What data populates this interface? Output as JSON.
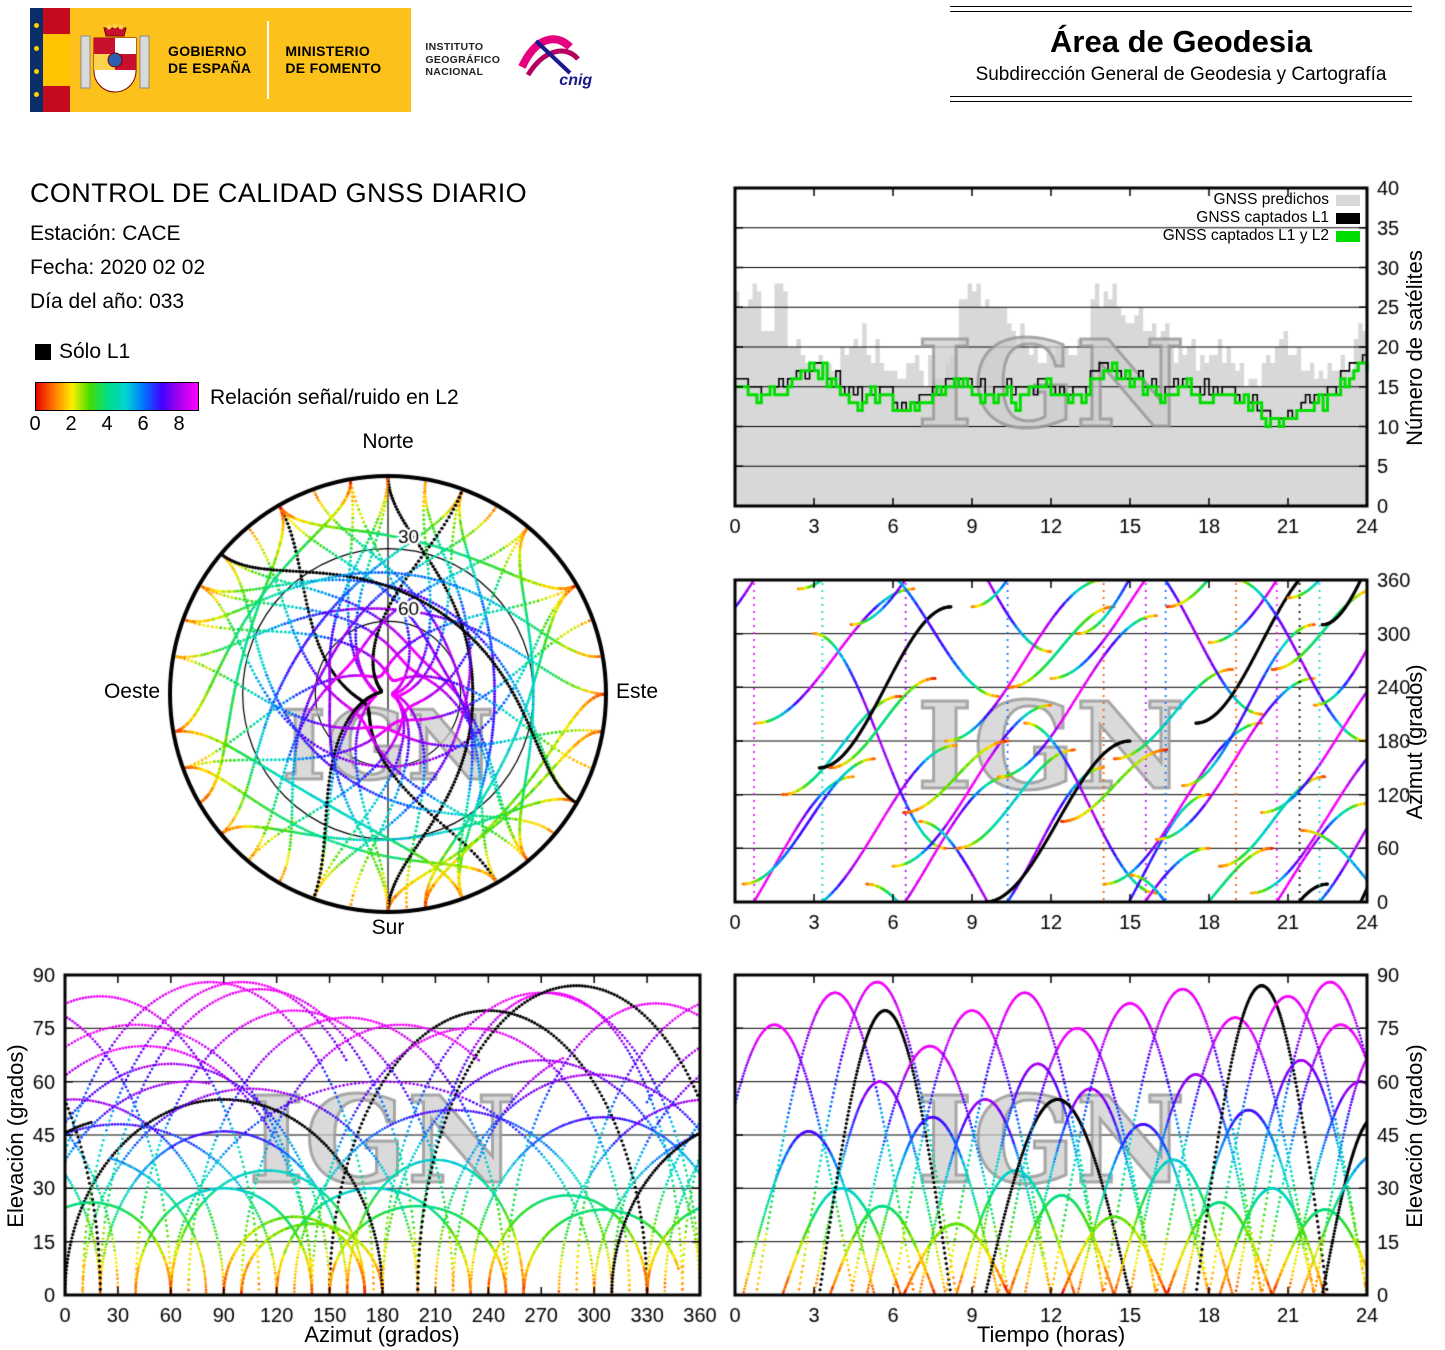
{
  "header": {
    "gobierno": [
      "GOBIERNO",
      "DE ESPAÑA"
    ],
    "ministerio": [
      "MINISTERIO",
      "DE FOMENTO"
    ],
    "instituto": [
      "INSTITUTO",
      "GEOGRÁFICO",
      "NACIONAL"
    ],
    "cnig_label": "cnig",
    "area_title": "Área de Geodesia",
    "area_subtitle": "Subdirección General de Geodesia y Cartografía"
  },
  "info": {
    "title": "CONTROL DE CALIDAD GNSS DIARIO",
    "station": "Estación: CACE",
    "date": "Fecha: 2020 02 02",
    "day_of_year": "Día del año: 033"
  },
  "legend": {
    "l1_only_label": "Sólo L1",
    "snr_label": "Relación señal/ruido en L2",
    "snr_ticks": [
      "0",
      "2",
      "4",
      "6",
      "8"
    ],
    "snr_colormap": [
      "#e60000",
      "#ff7800",
      "#ffee00",
      "#44dd00",
      "#00dd88",
      "#00d4d4",
      "#0072ff",
      "#4400ff",
      "#aa00ee",
      "#ff00ff"
    ]
  },
  "satellite_passes": {
    "fields": [
      "t0_h",
      "dur_h",
      "peak_elev_deg",
      "az_start_deg",
      "az_span_deg",
      "snr_l2",
      "l1_only"
    ],
    "tracks": [
      [
        -1.5,
        6,
        76,
        300,
        200,
        9,
        0
      ],
      [
        0.3,
        5,
        46,
        20,
        140,
        7,
        0
      ],
      [
        0.8,
        6,
        85,
        200,
        150,
        9,
        0
      ],
      [
        1.8,
        4.5,
        30,
        120,
        110,
        5,
        0
      ],
      [
        2.4,
        6,
        88,
        350,
        185,
        9,
        0
      ],
      [
        3.0,
        5,
        60,
        300,
        -240,
        8,
        0
      ],
      [
        3.2,
        5,
        80,
        150,
        180,
        0,
        1
      ],
      [
        3.6,
        4,
        25,
        150,
        100,
        4,
        0
      ],
      [
        4.4,
        6,
        70,
        310,
        190,
        9,
        0
      ],
      [
        5.0,
        5,
        50,
        20,
        -150,
        7,
        0
      ],
      [
        6.0,
        6,
        80,
        40,
        180,
        9,
        0
      ],
      [
        6.4,
        4,
        20,
        100,
        80,
        3,
        0
      ],
      [
        7.0,
        5,
        55,
        90,
        -170,
        8,
        0
      ],
      [
        8.0,
        6,
        85,
        180,
        180,
        9,
        0
      ],
      [
        8.4,
        4.5,
        35,
        60,
        110,
        5,
        0
      ],
      [
        9.0,
        5,
        65,
        330,
        180,
        8,
        0
      ],
      [
        9.5,
        5.5,
        55,
        0,
        180,
        0,
        1
      ],
      [
        10.0,
        6,
        75,
        140,
        180,
        9,
        0
      ],
      [
        10.4,
        4,
        28,
        240,
        90,
        4,
        0
      ],
      [
        11.0,
        5,
        58,
        200,
        -190,
        8,
        0
      ],
      [
        12.0,
        6,
        82,
        250,
        170,
        9,
        0
      ],
      [
        12.4,
        4,
        22,
        90,
        80,
        3,
        0
      ],
      [
        13.0,
        5,
        48,
        300,
        180,
        7,
        0
      ],
      [
        14.0,
        6,
        86,
        20,
        180,
        9,
        0
      ],
      [
        14.4,
        4.5,
        38,
        160,
        100,
        5,
        0
      ],
      [
        15.0,
        5,
        62,
        30,
        -180,
        8,
        0
      ],
      [
        16.0,
        6,
        78,
        70,
        180,
        9,
        0
      ],
      [
        16.4,
        4,
        26,
        330,
        90,
        4,
        0
      ],
      [
        17.0,
        5,
        52,
        130,
        180,
        7,
        0
      ],
      [
        17.5,
        5,
        87,
        200,
        180,
        0,
        1
      ],
      [
        18.0,
        6,
        84,
        290,
        180,
        9,
        0
      ],
      [
        18.4,
        4,
        30,
        40,
        100,
        5,
        0
      ],
      [
        19.0,
        5,
        66,
        0,
        -180,
        8,
        0
      ],
      [
        19.6,
        6,
        88,
        10,
        180,
        9,
        0
      ],
      [
        20.0,
        6,
        76,
        100,
        180,
        9,
        0
      ],
      [
        20.4,
        4,
        24,
        260,
        90,
        4,
        0
      ],
      [
        21.0,
        5.5,
        60,
        340,
        180,
        8,
        0
      ],
      [
        22.0,
        5,
        70,
        220,
        180,
        9,
        0
      ],
      [
        22.3,
        4,
        50,
        310,
        170,
        0,
        1
      ],
      [
        21.5,
        6,
        40,
        80,
        -150,
        6,
        0
      ]
    ]
  },
  "chart_data": [
    {
      "id": "sat-count",
      "type": "area",
      "ylabel": "Número de satélites",
      "xlabel": "",
      "xlim": [
        0,
        24
      ],
      "ylim": [
        0,
        40
      ],
      "xticks": [
        0,
        3,
        6,
        9,
        12,
        15,
        18,
        21,
        24
      ],
      "yticks": [
        0,
        5,
        10,
        15,
        20,
        25,
        30,
        35,
        40
      ],
      "x_step_hours": 0.5,
      "watermark": "IGN",
      "series": [
        {
          "name": "GNSS predichos",
          "color": "#d8d8d8",
          "values": [
            27,
            26,
            22,
            28,
            20,
            19,
            18,
            18,
            20,
            21,
            19,
            18,
            17,
            18,
            17,
            16,
            18,
            26,
            27,
            26,
            25,
            22,
            20,
            18,
            19,
            20,
            21,
            26,
            27,
            25,
            23,
            22,
            21,
            20,
            19,
            17,
            19,
            18,
            17,
            16,
            18,
            20,
            19,
            17,
            16,
            18,
            19,
            21,
            21
          ]
        },
        {
          "name": "GNSS captados L1",
          "color": "#000000",
          "values": [
            16,
            15,
            14,
            15,
            16,
            17,
            18,
            16,
            15,
            14,
            14,
            15,
            13,
            12,
            14,
            15,
            16,
            16,
            15,
            14,
            15,
            14,
            15,
            16,
            15,
            14,
            15,
            17,
            18,
            17,
            16,
            15,
            14,
            15,
            16,
            15,
            14,
            15,
            14,
            13,
            12,
            11,
            12,
            13,
            14,
            15,
            17,
            18,
            18
          ]
        },
        {
          "name": "GNSS captados L1 y L2",
          "color": "#00dd00",
          "values": [
            15,
            14,
            14,
            14,
            15,
            17,
            17,
            15,
            14,
            13,
            14,
            14,
            12,
            12,
            13,
            14,
            15,
            15,
            14,
            14,
            14,
            13,
            14,
            15,
            14,
            14,
            14,
            16,
            17,
            16,
            15,
            14,
            14,
            14,
            15,
            14,
            13,
            14,
            13,
            12,
            11,
            11,
            11,
            12,
            13,
            14,
            16,
            17,
            17
          ]
        }
      ],
      "legend_position": "top-right"
    },
    {
      "id": "azimuth-time",
      "type": "scatter",
      "ylabel": "Azimut (grados)",
      "xlabel": "",
      "xlim": [
        0,
        24
      ],
      "ylim": [
        0,
        360
      ],
      "xticks": [
        0,
        3,
        6,
        9,
        12,
        15,
        18,
        21,
        24
      ],
      "yticks": [
        0,
        60,
        120,
        180,
        240,
        300,
        360
      ],
      "series_source": "satellite_passes",
      "watermark": "IGN"
    },
    {
      "id": "skyplot",
      "type": "scatter-polar",
      "cardinals": {
        "north": "Norte",
        "south": "Sur",
        "east": "Este",
        "west": "Oeste"
      },
      "elev_rings": [
        {
          "deg": 30,
          "label": "30"
        },
        {
          "deg": 60,
          "label": "60"
        }
      ],
      "series_source": "satellite_passes",
      "watermark": "IGN"
    },
    {
      "id": "elev-azimuth",
      "type": "scatter",
      "ylabel": "Elevación (grados)",
      "xlabel": "Azimut (grados)",
      "xlim": [
        0,
        360
      ],
      "ylim": [
        0,
        90
      ],
      "xticks": [
        0,
        30,
        60,
        90,
        120,
        150,
        180,
        210,
        240,
        270,
        300,
        330,
        360
      ],
      "yticks": [
        0,
        15,
        30,
        45,
        60,
        75,
        90
      ],
      "series_source": "satellite_passes",
      "watermark": "IGN"
    },
    {
      "id": "elev-time",
      "type": "scatter",
      "ylabel": "Elevación (grados)",
      "xlabel": "Tiempo (horas)",
      "xlim": [
        0,
        24
      ],
      "ylim": [
        0,
        90
      ],
      "xticks": [
        0,
        3,
        6,
        9,
        12,
        15,
        18,
        21,
        24
      ],
      "yticks": [
        0,
        15,
        30,
        45,
        60,
        75,
        90
      ],
      "series_source": "satellite_passes",
      "watermark": "IGN"
    }
  ]
}
